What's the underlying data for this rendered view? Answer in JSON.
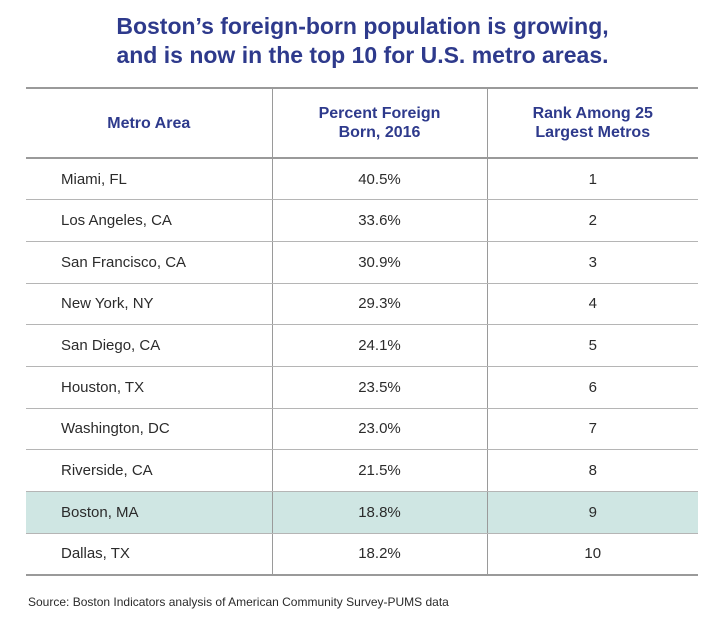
{
  "chart_data": {
    "type": "table",
    "title_lines": [
      "Boston’s foreign-born population is growing,",
      "and is now in the top 10 for U.S. metro areas."
    ],
    "columns": [
      "Metro Area",
      "Percent Foreign Born, 2016",
      "Rank Among 25 Largest Metros"
    ],
    "rows": [
      {
        "area": "Miami, FL",
        "pct": "40.5%",
        "rank": "1",
        "highlight": false
      },
      {
        "area": "Los Angeles, CA",
        "pct": "33.6%",
        "rank": "2",
        "highlight": false
      },
      {
        "area": "San Francisco, CA",
        "pct": "30.9%",
        "rank": "3",
        "highlight": false
      },
      {
        "area": "New York, NY",
        "pct": "29.3%",
        "rank": "4",
        "highlight": false
      },
      {
        "area": "San Diego, CA",
        "pct": "24.1%",
        "rank": "5",
        "highlight": false
      },
      {
        "area": "Houston, TX",
        "pct": "23.5%",
        "rank": "6",
        "highlight": false
      },
      {
        "area": "Washington, DC",
        "pct": "23.0%",
        "rank": "7",
        "highlight": false
      },
      {
        "area": "Riverside, CA",
        "pct": "21.5%",
        "rank": "8",
        "highlight": false
      },
      {
        "area": "Boston, MA",
        "pct": "18.8%",
        "rank": "9",
        "highlight": true
      },
      {
        "area": "Dallas, TX",
        "pct": "18.2%",
        "rank": "10",
        "highlight": false
      }
    ],
    "source": "Source: Boston Indicators analysis of American Community Survey-PUMS data"
  },
  "colors": {
    "title": "#2e3a8c",
    "highlight_row": "#cfe6e3",
    "rule": "#9a9a9a"
  }
}
